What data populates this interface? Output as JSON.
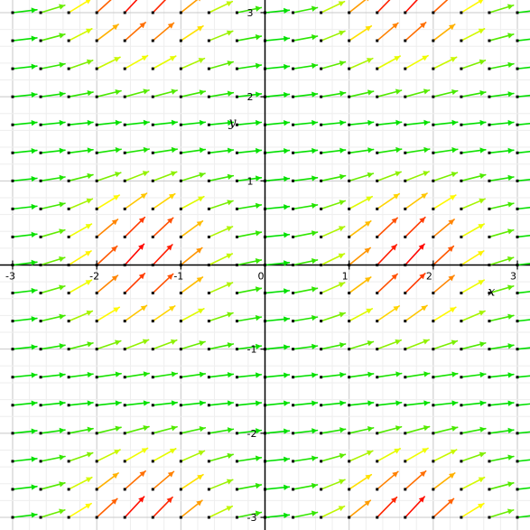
{
  "chart_data": {
    "type": "vector-field",
    "xlabel": "x",
    "ylabel": "y",
    "xlim": [
      -3.15,
      3.15
    ],
    "ylim": [
      -3.15,
      3.15
    ],
    "x_ticks": [
      {
        "value": -3,
        "label": "-3"
      },
      {
        "value": -2,
        "label": "-2"
      },
      {
        "value": -1,
        "label": "-1"
      },
      {
        "value": 0,
        "label": "0"
      },
      {
        "value": 1,
        "label": "1"
      },
      {
        "value": 2,
        "label": "2"
      },
      {
        "value": 3,
        "label": "3"
      }
    ],
    "y_ticks": [
      {
        "value": -3,
        "label": "-3"
      },
      {
        "value": -2,
        "label": "-2"
      },
      {
        "value": -1,
        "label": "-1"
      },
      {
        "value": 1,
        "label": "1"
      },
      {
        "value": 2,
        "label": "2"
      },
      {
        "value": 3,
        "label": "3"
      }
    ],
    "grid": true,
    "grid_minor_step": 0.2,
    "grid_major_step": 1,
    "arrow_sample_step": 0.3333,
    "field": {
      "dx": 1,
      "dy": "sin(x)^2 * cos(y)^2 + 0.1",
      "description_hint": "arrows point right and upward; steepest near x = ±1.57 and y = 0, ±3.14"
    },
    "colorscale": [
      "#00e000",
      "#ffff00",
      "#ff0000"
    ],
    "colors": {
      "axis": "#000000",
      "grid_minor": "#eeeeee",
      "grid_major": "#c8c8c8",
      "base_point": "#000000"
    }
  }
}
